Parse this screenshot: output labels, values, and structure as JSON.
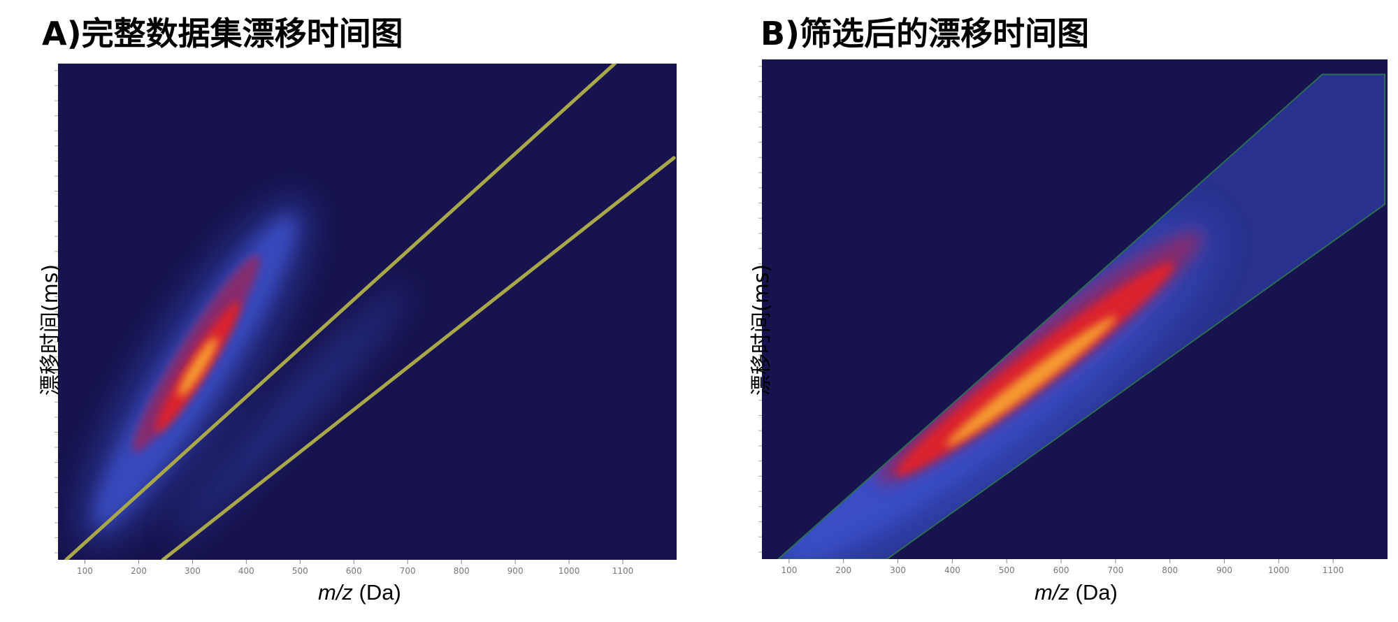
{
  "figure": {
    "panels": [
      {
        "id": "A",
        "title": "A)完整数据集漂移时间图",
        "xlabel_italic": "m/z",
        "xlabel_unit": " (Da)",
        "ylabel": "漂移时间(ms)"
      },
      {
        "id": "B",
        "title": "B)筛选后的漂移时间图",
        "xlabel_italic": "m/z",
        "xlabel_unit": " (Da)",
        "ylabel": "漂移时间(ms)"
      }
    ]
  },
  "colors": {
    "background": "#16134e",
    "boundary_line": "#a8a84a",
    "mask_outline": "#2d6b52",
    "heat_low": "#3a4fc8",
    "heat_mid": "#8a2a6a",
    "heat_high": "#e0202a",
    "heat_peak": "#f8a830"
  },
  "chart_data": [
    {
      "type": "heatmap",
      "title": "A)完整数据集漂移时间图",
      "xlabel": "m/z (Da)",
      "ylabel": "漂移时间(ms)",
      "xlim": [
        50,
        1200
      ],
      "ylim": [
        0,
        100
      ],
      "xticks": [
        100,
        200,
        300,
        400,
        500,
        600,
        700,
        800,
        900,
        1000,
        1100
      ],
      "xtick_labels": [
        "100",
        "200",
        "300",
        "400",
        "500",
        "600",
        "700",
        "800",
        "900",
        "1000",
        "1100"
      ],
      "ytick_labels": [],
      "density_bands": [
        {
          "name": "main charge-state band",
          "from": [
            130,
            8
          ],
          "to": [
            480,
            68
          ],
          "intensity": "high",
          "peak_m_z": 310
        },
        {
          "name": "faint secondary band",
          "from": [
            260,
            4
          ],
          "to": [
            700,
            55
          ],
          "intensity": "low",
          "peak_m_z": 450
        }
      ],
      "boundary_lines": [
        {
          "name": "upper selection line",
          "points": [
            [
              65,
              0
            ],
            [
              1085,
              100
            ]
          ]
        },
        {
          "name": "lower selection line",
          "points": [
            [
              245,
              0
            ],
            [
              1195,
              81
            ]
          ]
        }
      ]
    },
    {
      "type": "heatmap",
      "title": "B)筛选后的漂移时间图",
      "xlabel": "m/z (Da)",
      "ylabel": "漂移时间(ms)",
      "xlim": [
        50,
        1200
      ],
      "ylim": [
        0,
        100
      ],
      "xticks": [
        100,
        200,
        300,
        400,
        500,
        600,
        700,
        800,
        900,
        1000,
        1100
      ],
      "xtick_labels": [
        "100",
        "200",
        "300",
        "400",
        "500",
        "600",
        "700",
        "800",
        "900",
        "1000",
        "1100"
      ],
      "ytick_labels": [],
      "selection_region": [
        [
          80,
          0
        ],
        [
          1080,
          97
        ],
        [
          1195,
          97
        ],
        [
          1195,
          71
        ],
        [
          280,
          0
        ]
      ],
      "density_bands": [
        {
          "name": "filtered band",
          "from": [
            110,
            3
          ],
          "to": [
            820,
            62
          ],
          "intensity": "high",
          "peak_m_z": 560
        }
      ]
    }
  ]
}
